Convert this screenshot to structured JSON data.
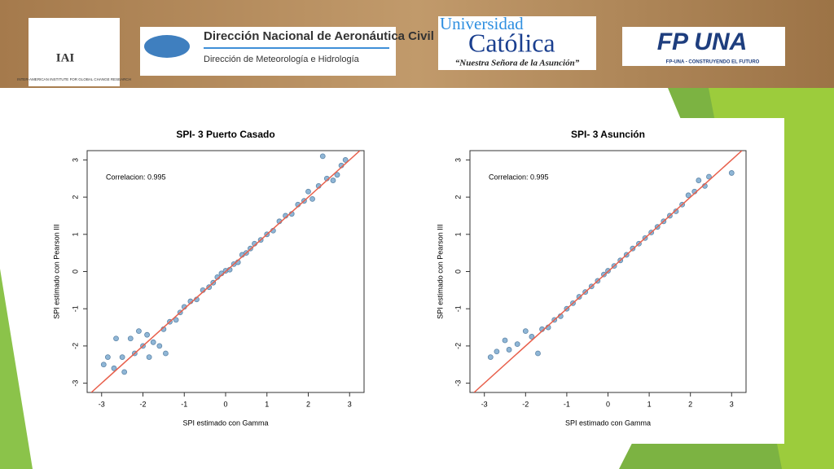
{
  "header": {
    "iai": {
      "acronym": "IAI",
      "ring": "INTER-AMERICAN INSTITUTE FOR GLOBAL CHANGE RESEARCH"
    },
    "dinac": {
      "title": "Dirección Nacional de Aeronáutica Civil",
      "subtitle": "Dirección de Meteorología e Hidrología"
    },
    "uc": {
      "line1": "Universidad",
      "line2": "Católica",
      "motto": "“Nuestra Señora de la Asunción”"
    },
    "fpuna": {
      "logo": "FP UNA",
      "slogan": "FP-UNA - CONSTRUYENDO EL FUTURO"
    }
  },
  "chart_data": [
    {
      "type": "scatter",
      "title": "SPI- 3 Puerto Casado",
      "x_label": "SPI estimado con Gamma",
      "y_label": "SPI estimado con Pearson III",
      "annotation": "Correlacion: 0.995",
      "color": "#8fb6d6",
      "edge_color": "#5f86a8",
      "xlim": [
        -3.35,
        3.35
      ],
      "ylim": [
        -3.25,
        3.25
      ],
      "xticks": [
        -3,
        -2,
        -1,
        0,
        1,
        2,
        3
      ],
      "yticks": [
        -3,
        -2,
        -1,
        0,
        1,
        2,
        3
      ],
      "x": [
        -2.95,
        -2.85,
        -2.7,
        -2.65,
        -2.5,
        -2.45,
        -2.3,
        -2.2,
        -2.1,
        -2.0,
        -1.9,
        -1.85,
        -1.75,
        -1.6,
        -1.5,
        -1.45,
        -1.35,
        -1.2,
        -1.1,
        -1.0,
        -0.85,
        -0.7,
        -0.55,
        -0.4,
        -0.3,
        -0.2,
        -0.1,
        0,
        0.1,
        0.2,
        0.3,
        0.4,
        0.5,
        0.6,
        0.7,
        0.85,
        1.0,
        1.15,
        1.3,
        1.45,
        1.6,
        1.75,
        1.9,
        2.0,
        2.1,
        2.25,
        2.35,
        2.45,
        2.6,
        2.7,
        2.8,
        2.9
      ],
      "y": [
        -2.5,
        -2.3,
        -2.6,
        -1.8,
        -2.3,
        -2.7,
        -1.8,
        -2.2,
        -1.6,
        -2.0,
        -1.7,
        -2.3,
        -1.9,
        -2.0,
        -1.55,
        -2.2,
        -1.35,
        -1.3,
        -1.1,
        -0.95,
        -0.8,
        -0.75,
        -0.5,
        -0.42,
        -0.3,
        -0.15,
        -0.05,
        0.02,
        0.05,
        0.2,
        0.25,
        0.45,
        0.5,
        0.62,
        0.75,
        0.85,
        1.0,
        1.1,
        1.35,
        1.5,
        1.55,
        1.8,
        1.9,
        2.15,
        1.95,
        2.3,
        3.1,
        2.5,
        2.45,
        2.6,
        2.85,
        3.0
      ],
      "fit": {
        "color": "#e8604c",
        "x": [
          -3.25,
          3.25
        ],
        "y": [
          -3.25,
          3.25
        ]
      }
    },
    {
      "type": "scatter",
      "title": "SPI- 3  Asunción",
      "x_label": "SPI estimado con Gamma",
      "y_label": "SPI estimado con Pearson III",
      "annotation": "Correlacion: 0.995",
      "color": "#8fb6d6",
      "edge_color": "#5f86a8",
      "xlim": [
        -3.35,
        3.35
      ],
      "ylim": [
        -3.25,
        3.25
      ],
      "xticks": [
        -3,
        -2,
        -1,
        0,
        1,
        2,
        3
      ],
      "yticks": [
        -3,
        -2,
        -1,
        0,
        1,
        2,
        3
      ],
      "x": [
        -2.85,
        -2.7,
        -2.5,
        -2.4,
        -2.2,
        -2.0,
        -1.85,
        -1.7,
        -1.6,
        -1.45,
        -1.3,
        -1.15,
        -1.0,
        -0.85,
        -0.7,
        -0.55,
        -0.4,
        -0.25,
        -0.1,
        0,
        0.15,
        0.3,
        0.45,
        0.6,
        0.75,
        0.9,
        1.05,
        1.2,
        1.35,
        1.5,
        1.65,
        1.8,
        1.95,
        2.1,
        2.2,
        2.35,
        2.45,
        3.0
      ],
      "y": [
        -2.3,
        -2.15,
        -1.85,
        -2.1,
        -1.95,
        -1.6,
        -1.75,
        -2.2,
        -1.55,
        -1.5,
        -1.3,
        -1.2,
        -1.0,
        -0.85,
        -0.68,
        -0.55,
        -0.4,
        -0.25,
        -0.08,
        0.02,
        0.15,
        0.3,
        0.45,
        0.62,
        0.75,
        0.9,
        1.05,
        1.2,
        1.35,
        1.5,
        1.62,
        1.8,
        2.05,
        2.15,
        2.45,
        2.3,
        2.55,
        2.65
      ],
      "fit": {
        "color": "#e8604c",
        "x": [
          -3.25,
          3.25
        ],
        "y": [
          -3.25,
          3.25
        ]
      }
    }
  ]
}
